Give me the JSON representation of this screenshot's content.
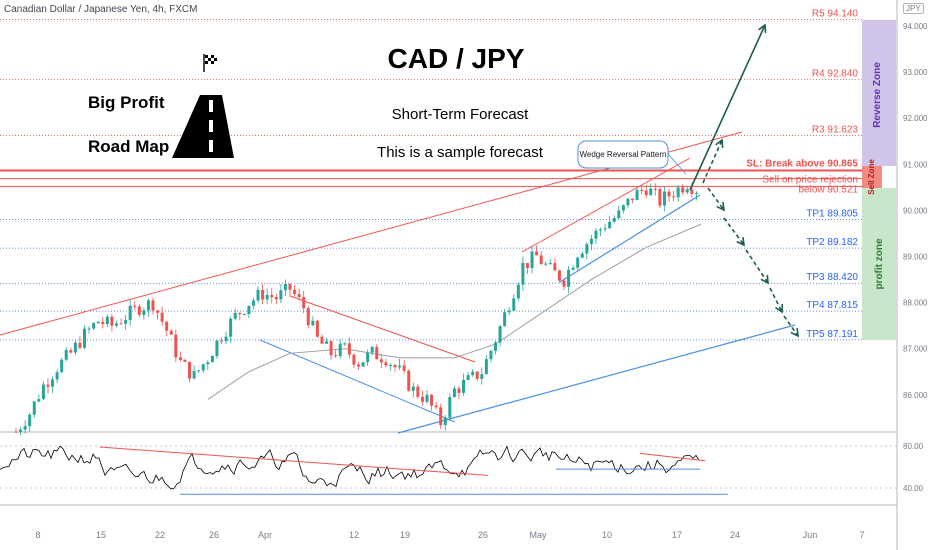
{
  "header": {
    "title": "Canadian Dollar / Japanese Yen, 4h, FXCM",
    "currency_badge": "JPY"
  },
  "branding": {
    "line1": "Big Profit",
    "line2": "Road Map",
    "logo_icon": "road-icon",
    "flag_icon": "checkered-flag-icon"
  },
  "headline": {
    "pair": "CAD / JPY",
    "subtitle": "Short-Term Forecast",
    "note": "This is a sample forecast"
  },
  "annotations": {
    "pattern": "Wedge Reversal Pattern"
  },
  "zones": {
    "reverse": "Reverse Zone",
    "sell": "Sell Zone",
    "profit": "profit zone"
  },
  "colors": {
    "bull": "#26a69a",
    "bear": "#ef5350",
    "target": "#2962ff",
    "resistance": "#ef5350",
    "ma": "#9e9e9e",
    "arrow": "#1b5e4f",
    "reverse_zone": "#d1c4e9",
    "sell_zone": "#f28b82",
    "profit_zone": "#c8e6c9"
  },
  "chart_data": {
    "type": "candlestick",
    "title": "CAD / JPY",
    "y_axis": {
      "ticks": [
        "94.000",
        "93.000",
        "92.000",
        "91.000",
        "90.000",
        "89.000",
        "88.000",
        "87.000",
        "86.000"
      ],
      "range": [
        85.0,
        94.2
      ]
    },
    "x_axis": {
      "ticks": [
        "8",
        "15",
        "22",
        "26",
        "Apr",
        "12",
        "19",
        "26",
        "May",
        "10",
        "17",
        "24",
        "Jun",
        "7"
      ]
    },
    "levels": [
      {
        "name": "R5",
        "value": 94.14,
        "label": "R5 94.140",
        "color": "#ef5350"
      },
      {
        "name": "R4",
        "value": 92.84,
        "label": "R4 92.840",
        "color": "#ef5350"
      },
      {
        "name": "R3",
        "value": 91.623,
        "label": "R3 91.623",
        "color": "#ef5350"
      },
      {
        "name": "SL",
        "value": 90.865,
        "label": "SL: Break above 90.865",
        "color": "#ef5350"
      },
      {
        "name": "Sell",
        "value": 90.69,
        "label": "Sell on price rejection",
        "color": "#ef5350"
      },
      {
        "name": "Entry",
        "value": 90.521,
        "label": "below 90.521",
        "color": "#ef5350"
      },
      {
        "name": "TP1",
        "value": 89.805,
        "label": "TP1 89.805",
        "color": "#2962ff"
      },
      {
        "name": "TP2",
        "value": 89.182,
        "label": "TP2 89.182",
        "color": "#2962ff"
      },
      {
        "name": "TP3",
        "value": 88.42,
        "label": "TP3 88.420",
        "color": "#2962ff"
      },
      {
        "name": "TP4",
        "value": 87.815,
        "label": "TP4 87.815",
        "color": "#2962ff"
      },
      {
        "name": "TP5",
        "value": 87.191,
        "label": "TP5 87.191",
        "color": "#2962ff"
      }
    ],
    "price_path": [
      [
        0,
        85.2
      ],
      [
        2,
        85.6
      ],
      [
        4,
        86.2
      ],
      [
        6,
        86.6
      ],
      [
        8,
        86.9
      ],
      [
        10,
        87.3
      ],
      [
        12,
        87.6
      ],
      [
        14,
        87.5
      ],
      [
        16,
        87.7
      ],
      [
        18,
        87.9
      ],
      [
        20,
        88.0
      ],
      [
        22,
        87.4
      ],
      [
        24,
        86.7
      ],
      [
        26,
        86.4
      ],
      [
        28,
        86.8
      ],
      [
        30,
        87.3
      ],
      [
        32,
        87.7
      ],
      [
        34,
        88.0
      ],
      [
        36,
        88.2
      ],
      [
        38,
        88.1
      ],
      [
        40,
        88.3
      ],
      [
        42,
        87.9
      ],
      [
        44,
        87.2
      ],
      [
        46,
        86.9
      ],
      [
        48,
        87.0
      ],
      [
        50,
        86.7
      ],
      [
        52,
        86.9
      ],
      [
        54,
        86.8
      ],
      [
        56,
        86.5
      ],
      [
        58,
        86.1
      ],
      [
        60,
        85.9
      ],
      [
        62,
        85.4
      ],
      [
        64,
        86.1
      ],
      [
        66,
        86.3
      ],
      [
        68,
        86.5
      ],
      [
        70,
        87.2
      ],
      [
        72,
        88.0
      ],
      [
        74,
        88.8
      ],
      [
        76,
        89.0
      ],
      [
        78,
        88.7
      ],
      [
        80,
        88.5
      ],
      [
        82,
        89.1
      ],
      [
        84,
        89.4
      ],
      [
        86,
        89.7
      ],
      [
        88,
        89.9
      ],
      [
        90,
        90.3
      ],
      [
        92,
        90.5
      ],
      [
        94,
        90.2
      ],
      [
        96,
        90.4
      ],
      [
        98,
        90.6
      ],
      [
        100,
        90.4
      ]
    ],
    "ma_path": [
      [
        28,
        85.9
      ],
      [
        34,
        86.5
      ],
      [
        40,
        86.9
      ],
      [
        48,
        87.0
      ],
      [
        56,
        86.8
      ],
      [
        64,
        86.8
      ],
      [
        70,
        87.1
      ],
      [
        76,
        87.7
      ],
      [
        84,
        88.5
      ],
      [
        92,
        89.2
      ],
      [
        100,
        89.7
      ]
    ],
    "rsi": {
      "ticks": [
        "80.00",
        "40.00"
      ],
      "range": [
        30,
        85
      ]
    }
  }
}
